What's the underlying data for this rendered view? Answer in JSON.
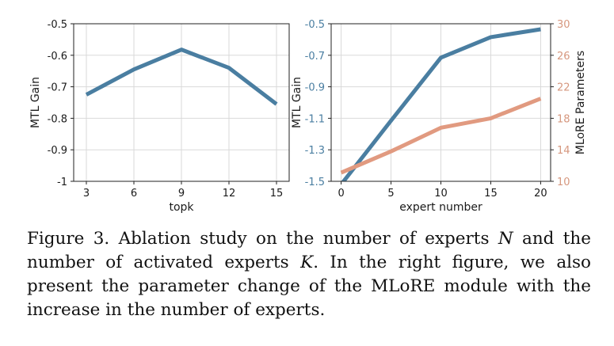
{
  "chart_data": [
    {
      "type": "line",
      "xlabel": "topk",
      "ylabel": "MTL Gain",
      "x": [
        3,
        6,
        9,
        12,
        15
      ],
      "x_ticks": [
        "3",
        "6",
        "9",
        "12",
        "15"
      ],
      "y_ticks": [
        "-0.5",
        "-0.6",
        "-0.7",
        "-0.8",
        "-0.9",
        "-1"
      ],
      "xlim": [
        2.2,
        15.8
      ],
      "ylim": [
        -1.0,
        -0.5
      ],
      "grid": true,
      "series": [
        {
          "values": [
            -0.725,
            -0.645,
            -0.582,
            -0.64,
            -0.755
          ],
          "color": "#4a7ea1"
        }
      ]
    },
    {
      "type": "line",
      "xlabel": "expert number",
      "ylabel": "MTL Gain",
      "y2label": "MLoRE Parameters",
      "x": [
        0,
        5,
        10,
        15,
        20
      ],
      "x_ticks": [
        "0",
        "5",
        "10",
        "15",
        "20"
      ],
      "y_ticks": [
        "-0.5",
        "-0.7",
        "-0.9",
        "-1.1",
        "-1.3",
        "-1.5"
      ],
      "y2_ticks": [
        "30",
        "26",
        "22",
        "18",
        "14",
        "10"
      ],
      "xlim": [
        -1,
        21
      ],
      "ylim": [
        -1.5,
        -0.5
      ],
      "y2lim": [
        10,
        30
      ],
      "grid": true,
      "series": [
        {
          "axis": "left",
          "values": [
            -1.52,
            -1.115,
            -0.715,
            -0.585,
            -0.535
          ],
          "color": "#4a7ea1"
        },
        {
          "axis": "right",
          "values": [
            11.1,
            13.8,
            16.8,
            18.0,
            20.5
          ],
          "color": "#e19a80"
        }
      ]
    }
  ],
  "caption": {
    "prefix": "Figure 3.  Ablation study on the number of experts ",
    "var_n": "N",
    "mid": " and the number of activated experts ",
    "var_k": "K",
    "suffix": ". In the right figure, we also present the parameter change of the MLoRE module with the increase in the number of experts."
  }
}
